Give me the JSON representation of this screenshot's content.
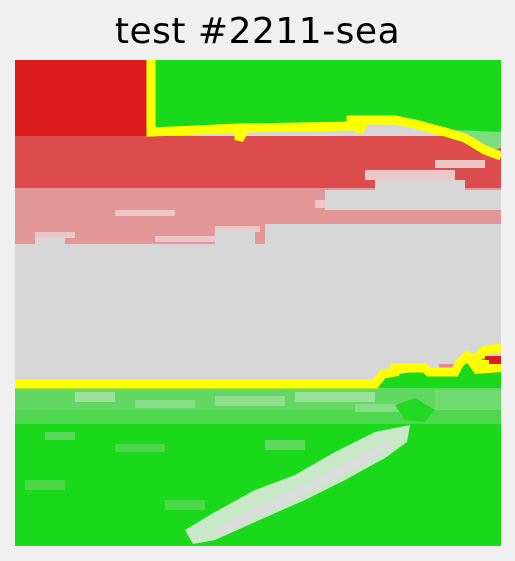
{
  "page": {
    "title": "test #2211-sea"
  },
  "colors": {
    "background": "#f0f0f0",
    "red_class": "#dc1c1c",
    "red_mid": "#dd4c4c",
    "red_light": "#e39a9a",
    "red_pale": "#ebc3c3",
    "neutral": "#d7d7d7",
    "green_class": "#1ad81a",
    "green_mid": "#44d944",
    "green_light": "#8fe08f",
    "green_pale": "#c0e6c0",
    "boundary": "#ffff00"
  },
  "map_legend": {
    "top_left_region": "red-class",
    "top_right_region": "green-class",
    "middle_band": "neutral",
    "bottom_region": "green-class",
    "boundaries": "yellow-contour"
  }
}
